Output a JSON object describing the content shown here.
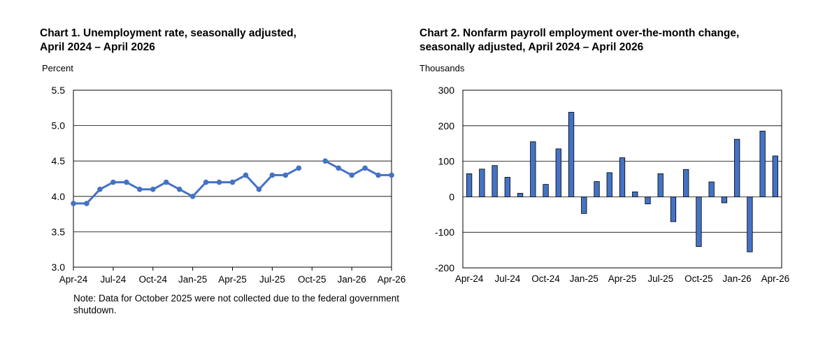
{
  "charts": [
    {
      "title_line1": "Chart 1. Unemployment rate, seasonally adjusted,",
      "title_line2": "April 2024 – April 2026",
      "ylabel": "Percent",
      "note": "Note: Data for October 2025 were not collected due to the federal government shutdown."
    },
    {
      "title_line1": "Chart 2. Nonfarm payroll employment over-the-month change,",
      "title_line2": "seasonally adjusted, April 2024 – April 2026",
      "ylabel": "Thousands"
    }
  ],
  "chart_data": [
    {
      "type": "line",
      "title": "Chart 1. Unemployment rate, seasonally adjusted, April 2024 – April 2026",
      "ylabel": "Percent",
      "xlabel": "",
      "x": [
        "Apr-24",
        "May-24",
        "Jun-24",
        "Jul-24",
        "Aug-24",
        "Sep-24",
        "Oct-24",
        "Nov-24",
        "Dec-24",
        "Jan-25",
        "Feb-25",
        "Mar-25",
        "Apr-25",
        "May-25",
        "Jun-25",
        "Jul-25",
        "Aug-25",
        "Sep-25",
        "Oct-25",
        "Nov-25",
        "Dec-25",
        "Jan-26",
        "Feb-26",
        "Mar-26",
        "Apr-26"
      ],
      "x_tick_labels": [
        "Apr-24",
        "Jul-24",
        "Oct-24",
        "Jan-25",
        "Apr-25",
        "Jul-25",
        "Oct-25",
        "Jan-26",
        "Apr-26"
      ],
      "values": [
        3.9,
        3.9,
        4.1,
        4.2,
        4.2,
        4.1,
        4.1,
        4.2,
        4.1,
        4.0,
        4.2,
        4.2,
        4.2,
        4.3,
        4.1,
        4.3,
        4.3,
        4.4,
        null,
        4.5,
        4.4,
        4.3,
        4.4,
        4.3,
        4.3
      ],
      "ylim": [
        3.0,
        5.5
      ],
      "y_ticks": [
        "3.0",
        "3.5",
        "4.0",
        "4.5",
        "5.0",
        "5.5"
      ],
      "grid": true,
      "color": "#4472c4"
    },
    {
      "type": "bar",
      "title": "Chart 2. Nonfarm payroll employment over-the-month change, seasonally adjusted, April 2024 – April 2026",
      "ylabel": "Thousands",
      "xlabel": "",
      "categories": [
        "Apr-24",
        "May-24",
        "Jun-24",
        "Jul-24",
        "Aug-24",
        "Sep-24",
        "Oct-24",
        "Nov-24",
        "Dec-24",
        "Jan-25",
        "Feb-25",
        "Mar-25",
        "Apr-25",
        "May-25",
        "Jun-25",
        "Jul-25",
        "Aug-25",
        "Sep-25",
        "Oct-25",
        "Nov-25",
        "Dec-25",
        "Jan-26",
        "Feb-26",
        "Mar-26",
        "Apr-26"
      ],
      "x_tick_labels": [
        "Apr-24",
        "Jul-24",
        "Oct-24",
        "Jan-25",
        "Apr-25",
        "Jul-25",
        "Oct-25",
        "Jan-26",
        "Apr-26"
      ],
      "values": [
        65,
        78,
        88,
        55,
        10,
        155,
        35,
        135,
        238,
        -47,
        43,
        68,
        110,
        14,
        -20,
        65,
        -70,
        77,
        -140,
        42,
        -17,
        162,
        -155,
        185,
        115
      ],
      "ylim": [
        -200,
        300
      ],
      "y_ticks": [
        "-200",
        "-100",
        "0",
        "100",
        "200",
        "300"
      ],
      "grid": true,
      "color": "#4472c4"
    }
  ]
}
